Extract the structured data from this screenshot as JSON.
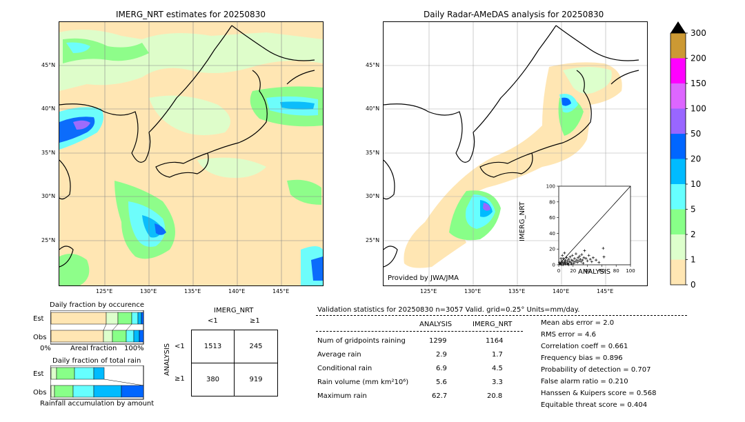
{
  "imerg_map": {
    "title": "IMERG_NRT estimates for 20250830",
    "lat_labels": [
      "45°N",
      "40°N",
      "35°N",
      "30°N",
      "25°N"
    ],
    "lon_labels": [
      "125°E",
      "130°E",
      "135°E",
      "140°E",
      "145°E"
    ]
  },
  "radar_map": {
    "title": "Daily Radar-AMeDAS analysis for 20250830",
    "lat_labels": [
      "45°N",
      "40°N",
      "35°N",
      "30°N",
      "25°N"
    ],
    "lon_labels": [
      "125°E",
      "130°E",
      "135°E",
      "140°E",
      "145°E"
    ],
    "credit": "Provided by JWA/JMA"
  },
  "colorbar": {
    "ticks": [
      "300",
      "200",
      "150",
      "100",
      "50",
      "20",
      "10",
      "5",
      "2",
      "1",
      "0"
    ],
    "colors": [
      "#cc9933",
      "#ff00ff",
      "#dd66ff",
      "#9966ff",
      "#0066ff",
      "#00bbff",
      "#66ffff",
      "#88ff88",
      "#ddffcc",
      "#ffe6b3"
    ]
  },
  "occurrence": {
    "title": "Daily fraction by occurence",
    "row_est": "Est",
    "row_obs": "Obs",
    "xleft": "0%",
    "xmid": "Areal fraction",
    "xright": "100%"
  },
  "total_rain": {
    "title": "Daily fraction of total rain",
    "row_est": "Est",
    "row_obs": "Obs",
    "xlabel": "Rainfall accumulation by amount"
  },
  "contingency": {
    "col_header": "IMERG_NRT",
    "col_lt": "<1",
    "col_ge": "≥1",
    "row_header": "ANALYSIS",
    "row_lt": "<1",
    "row_ge": "≥1",
    "a": "1513",
    "b": "245",
    "c": "380",
    "d": "919"
  },
  "stats": {
    "header": "Validation statistics for 20250830  n=3057 Valid. grid=0.25° Units=mm/day.",
    "col1": "ANALYSIS",
    "col2": "IMERG_NRT",
    "rows": [
      {
        "label": "Num of gridpoints raining",
        "analysis": "1299",
        "imerg": "1164"
      },
      {
        "label": "Average rain",
        "analysis": "2.9",
        "imerg": "1.7"
      },
      {
        "label": "Conditional rain",
        "analysis": "6.9",
        "imerg": "4.5"
      },
      {
        "label": "Rain volume (mm km²10⁶)",
        "analysis": "5.6",
        "imerg": "3.3"
      },
      {
        "label": "Maximum rain",
        "analysis": "62.7",
        "imerg": "20.8"
      }
    ],
    "scores": [
      "Mean abs error =    2.0",
      "RMS error =    4.6",
      "Correlation coeff =  0.661",
      "Frequency bias =  0.896",
      "Probability of detection =  0.707",
      "False alarm ratio =  0.210",
      "Hanssen & Kuipers score =  0.568",
      "Equitable threat score =  0.404"
    ]
  },
  "chart_data": {
    "type": "scatter",
    "xlabel": "ANALYSIS",
    "ylabel": "IMERG_NRT",
    "xlim": [
      0,
      100
    ],
    "ylim": [
      0,
      100
    ],
    "xticks": [
      "0",
      "20",
      "40",
      "60",
      "80",
      "100"
    ],
    "yticks": [
      "0",
      "20",
      "40",
      "60",
      "80",
      "100"
    ],
    "points": [
      [
        2,
        1
      ],
      [
        3,
        2
      ],
      [
        4,
        5
      ],
      [
        5,
        3
      ],
      [
        6,
        8
      ],
      [
        7,
        2
      ],
      [
        8,
        4
      ],
      [
        9,
        6
      ],
      [
        10,
        3
      ],
      [
        11,
        9
      ],
      [
        12,
        5
      ],
      [
        13,
        2
      ],
      [
        14,
        7
      ],
      [
        15,
        4
      ],
      [
        16,
        10
      ],
      [
        17,
        3
      ],
      [
        18,
        6
      ],
      [
        19,
        12
      ],
      [
        20,
        5
      ],
      [
        21,
        2
      ],
      [
        22,
        8
      ],
      [
        23,
        4
      ],
      [
        24,
        14
      ],
      [
        25,
        6
      ],
      [
        26,
        3
      ],
      [
        27,
        9
      ],
      [
        28,
        5
      ],
      [
        29,
        11
      ],
      [
        30,
        7
      ],
      [
        31,
        4
      ],
      [
        32,
        13
      ],
      [
        33,
        6
      ],
      [
        34,
        2
      ],
      [
        35,
        9
      ],
      [
        36,
        18
      ],
      [
        38,
        8
      ],
      [
        40,
        5
      ],
      [
        42,
        12
      ],
      [
        44,
        7
      ],
      [
        46,
        4
      ],
      [
        48,
        9
      ],
      [
        52,
        6
      ],
      [
        56,
        3
      ],
      [
        62,
        21
      ],
      [
        63,
        10
      ],
      [
        3,
        8
      ],
      [
        5,
        12
      ],
      [
        8,
        15
      ],
      [
        12,
        1
      ],
      [
        6,
        0
      ],
      [
        1,
        3
      ],
      [
        4,
        0
      ],
      [
        9,
        1
      ],
      [
        14,
        0
      ],
      [
        18,
        1
      ]
    ]
  }
}
